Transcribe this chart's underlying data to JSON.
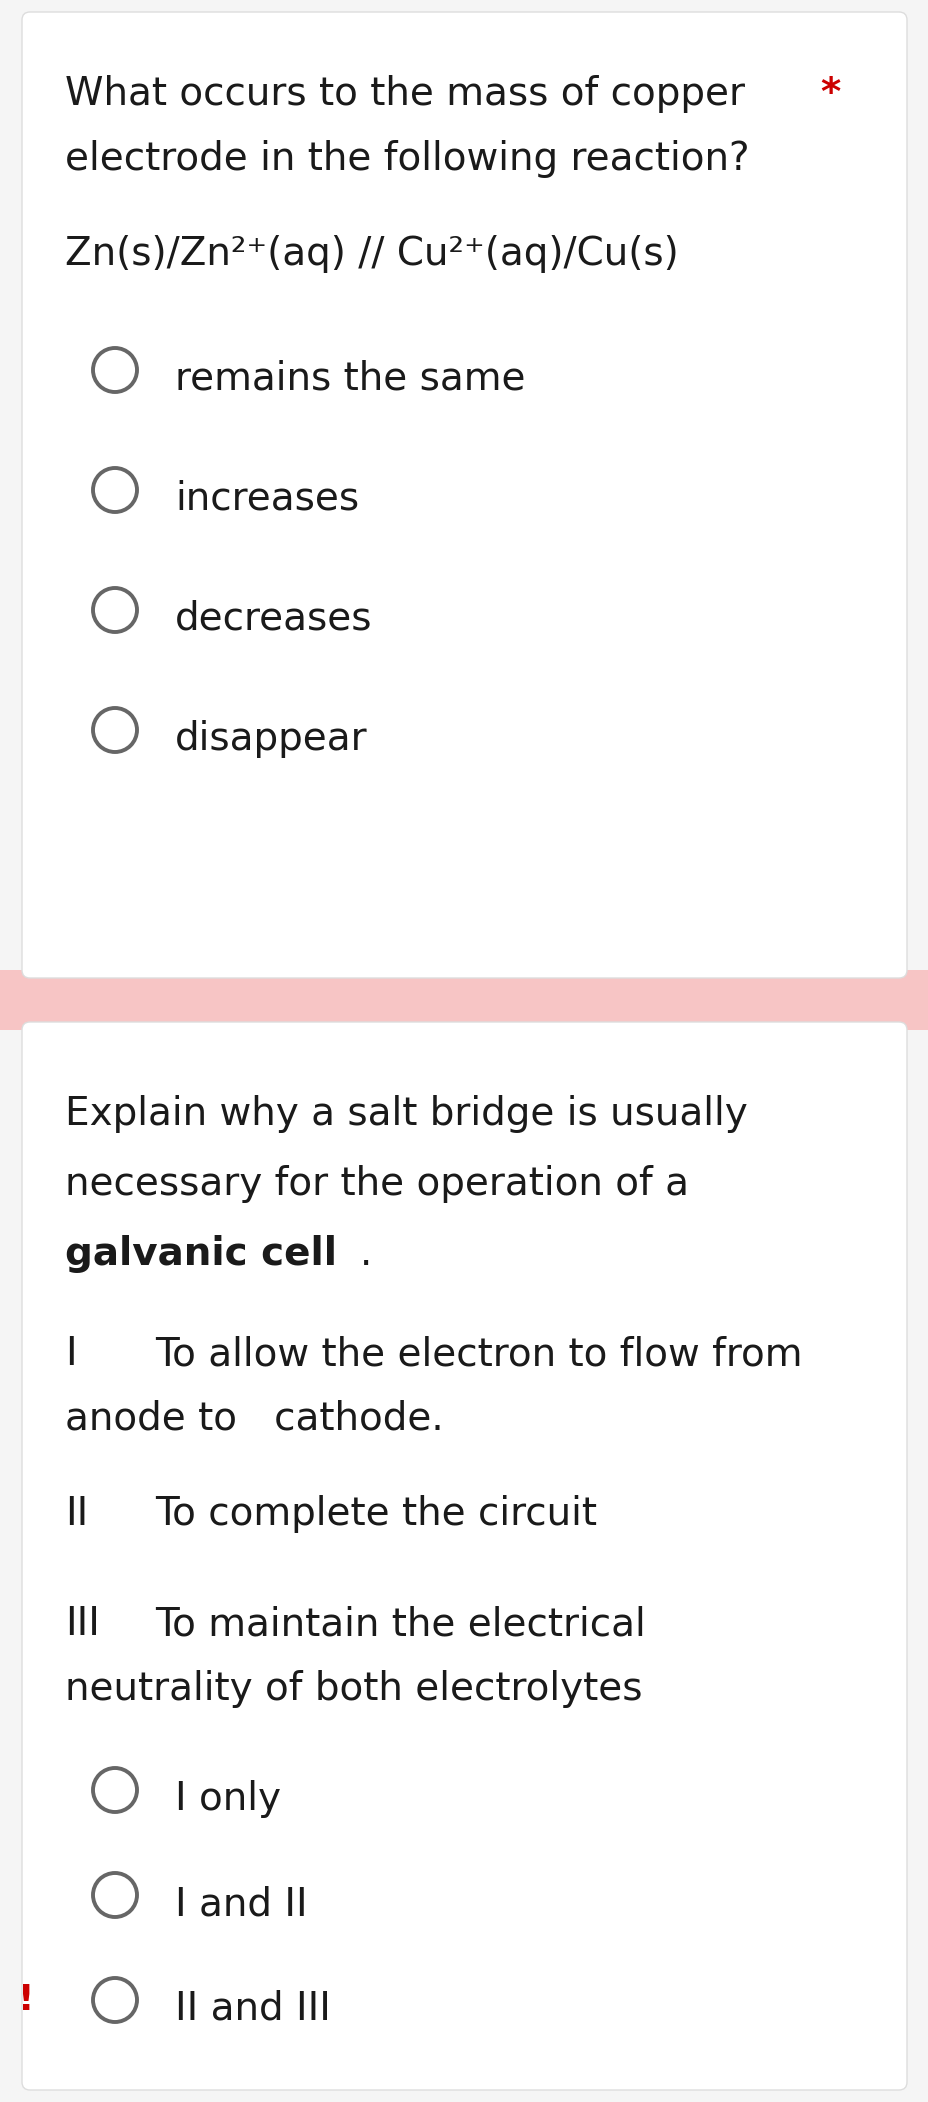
{
  "bg_color": "#f5f5f5",
  "card1_bg": "#ffffff",
  "card2_bg": "#ffffff",
  "separator_color": "#f7c5c5",
  "question1_line1": "What occurs to the mass of copper",
  "question1_line2": "electrode in the following reaction?",
  "asterisk": "*",
  "asterisk_color": "#cc0000",
  "formula": "Zn(s)/Zn²⁺(aq) // Cu²⁺(aq)/Cu(s)",
  "options1": [
    "remains the same",
    "increases",
    "decreases",
    "disappear"
  ],
  "question2_line1": "Explain why a salt bridge is usually",
  "question2_line2": "necessary for the operation of a",
  "roman1": "I",
  "roman1_text_line1": "To allow the electron to flow from",
  "roman1_text_line2": "anode to   cathode.",
  "roman2": "II",
  "roman2_text": "To complete the circuit",
  "roman3": "III",
  "roman3_text_line1": "To maintain the electrical",
  "roman3_text_line2": "neutrality of both electrolytes",
  "options2": [
    "I only",
    "I and II",
    "II and III"
  ],
  "exclamation_color": "#cc0000",
  "text_color": "#1a1a1a",
  "circle_color": "#666666",
  "font_size": 28
}
